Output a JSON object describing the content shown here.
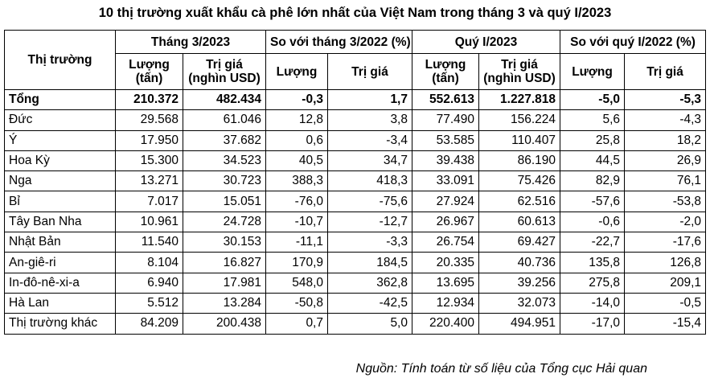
{
  "title": "10 thị trường xuất khẩu cà phê lớn nhất của Việt Nam trong tháng 3 và quý I/2023",
  "headers": {
    "market": "Thị trường",
    "march_2023": "Tháng 3/2023",
    "vs_march_2022": "So với tháng 3/2022 (%)",
    "q1_2023": "Quý I/2023",
    "vs_q1_2022": "So với quý I/2022 (%)",
    "volume_line1": "Lượng",
    "volume_line2": "(tấn)",
    "value_line1": "Trị giá",
    "value_line2": "(nghìn USD)",
    "volume": "Lượng",
    "value": "Trị giá"
  },
  "rows": [
    {
      "name": "Tổng",
      "m_vol": "210.372",
      "m_val": "482.434",
      "m_vol_pct": "-0,3",
      "m_val_pct": "1,7",
      "q_vol": "552.613",
      "q_val": "1.227.818",
      "q_vol_pct": "-5,0",
      "q_val_pct": "-5,3"
    },
    {
      "name": "Đức",
      "m_vol": "29.568",
      "m_val": "61.046",
      "m_vol_pct": "12,8",
      "m_val_pct": "3,8",
      "q_vol": "77.490",
      "q_val": "156.224",
      "q_vol_pct": "5,6",
      "q_val_pct": "-4,3"
    },
    {
      "name": "Ý",
      "m_vol": "17.950",
      "m_val": "37.682",
      "m_vol_pct": "0,6",
      "m_val_pct": "-3,4",
      "q_vol": "53.585",
      "q_val": "110.407",
      "q_vol_pct": "25,8",
      "q_val_pct": "18,2"
    },
    {
      "name": "Hoa Kỳ",
      "m_vol": "15.300",
      "m_val": "34.523",
      "m_vol_pct": "40,5",
      "m_val_pct": "34,7",
      "q_vol": "39.438",
      "q_val": "86.190",
      "q_vol_pct": "44,5",
      "q_val_pct": "26,9"
    },
    {
      "name": "Nga",
      "m_vol": "13.271",
      "m_val": "30.723",
      "m_vol_pct": "388,3",
      "m_val_pct": "418,3",
      "q_vol": "33.091",
      "q_val": "75.426",
      "q_vol_pct": "82,9",
      "q_val_pct": "76,1"
    },
    {
      "name": "Bỉ",
      "m_vol": "7.017",
      "m_val": "15.051",
      "m_vol_pct": "-76,0",
      "m_val_pct": "-75,6",
      "q_vol": "27.924",
      "q_val": "62.516",
      "q_vol_pct": "-57,6",
      "q_val_pct": "-53,8"
    },
    {
      "name": "Tây Ban Nha",
      "m_vol": "10.961",
      "m_val": "24.728",
      "m_vol_pct": "-10,7",
      "m_val_pct": "-12,7",
      "q_vol": "26.967",
      "q_val": "60.613",
      "q_vol_pct": "-0,6",
      "q_val_pct": "-2,0"
    },
    {
      "name": "Nhật Bản",
      "m_vol": "11.540",
      "m_val": "30.153",
      "m_vol_pct": "-11,1",
      "m_val_pct": "-3,3",
      "q_vol": "26.754",
      "q_val": "69.427",
      "q_vol_pct": "-22,7",
      "q_val_pct": "-17,6"
    },
    {
      "name": "An-giê-ri",
      "m_vol": "8.104",
      "m_val": "16.827",
      "m_vol_pct": "170,9",
      "m_val_pct": "184,5",
      "q_vol": "20.335",
      "q_val": "40.736",
      "q_vol_pct": "135,8",
      "q_val_pct": "126,8"
    },
    {
      "name": "In-đô-nê-xi-a",
      "m_vol": "6.940",
      "m_val": "17.981",
      "m_vol_pct": "548,0",
      "m_val_pct": "362,8",
      "q_vol": "13.695",
      "q_val": "39.256",
      "q_vol_pct": "275,8",
      "q_val_pct": "209,1"
    },
    {
      "name": "Hà Lan",
      "m_vol": "5.512",
      "m_val": "13.284",
      "m_vol_pct": "-50,8",
      "m_val_pct": "-42,5",
      "q_vol": "12.934",
      "q_val": "32.073",
      "q_vol_pct": "-14,0",
      "q_val_pct": "-0,5"
    },
    {
      "name": "Thị trường khác",
      "m_vol": "84.209",
      "m_val": "200.438",
      "m_vol_pct": "0,7",
      "m_val_pct": "5,0",
      "q_vol": "220.400",
      "q_val": "494.951",
      "q_vol_pct": "-17,0",
      "q_val_pct": "-15,4"
    }
  ],
  "source": "Nguồn: Tính toán từ số liệu của Tổng cục Hải quan"
}
